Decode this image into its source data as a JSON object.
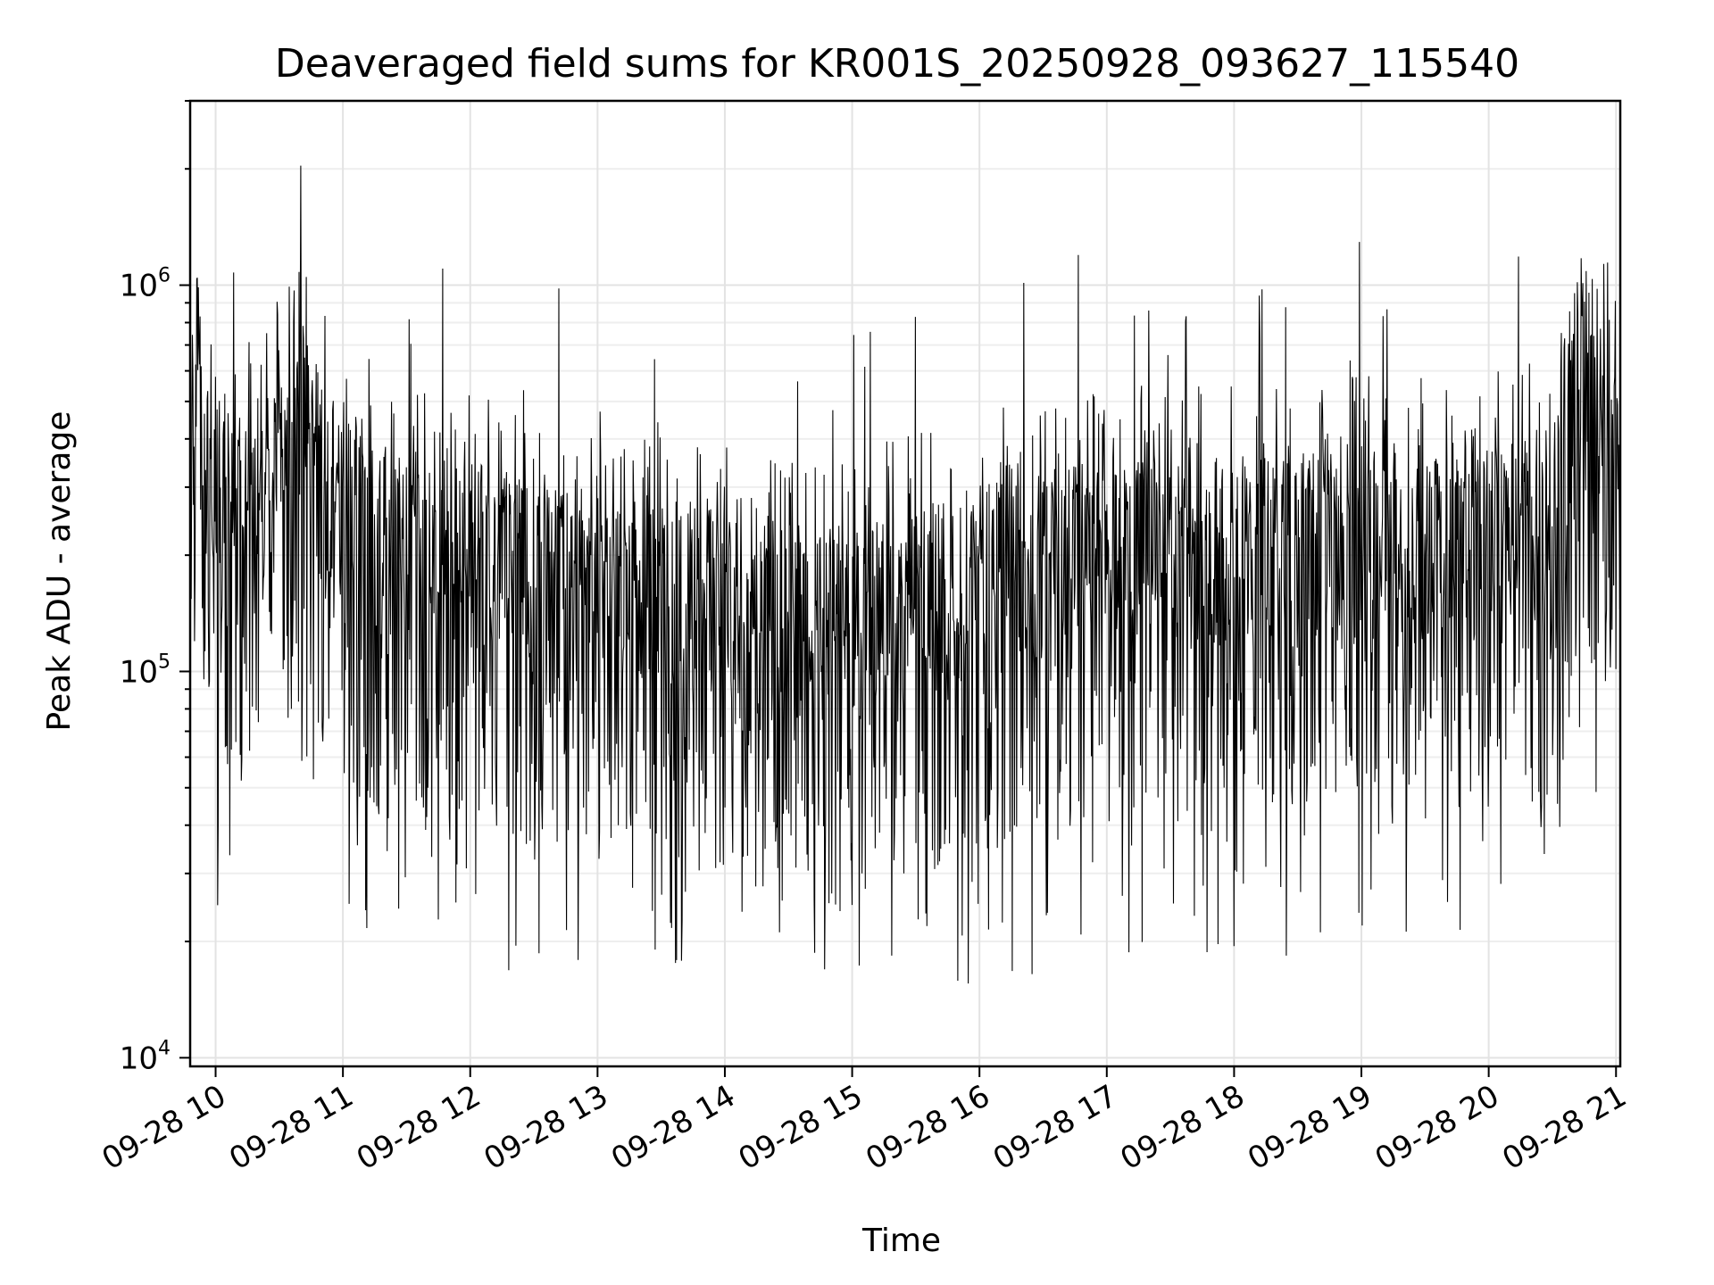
{
  "chart_data": {
    "type": "line",
    "title": "Deaveraged field sums for KR001S_20250928_093627_115540",
    "xlabel": "Time",
    "ylabel": "Peak ADU - average",
    "yscale": "log",
    "ylim": [
      9500,
      3000000
    ],
    "xlim": [
      "2025-09-28 09:48",
      "2025-09-28 21:02"
    ],
    "grid": true,
    "line_color": "#000000",
    "x_tick_labels": [
      "09-28 10",
      "09-28 11",
      "09-28 12",
      "09-28 13",
      "09-28 14",
      "09-28 15",
      "09-28 16",
      "09-28 17",
      "09-28 18",
      "09-28 19",
      "09-28 20",
      "09-28 21"
    ],
    "x_ticks_hours": [
      10,
      11,
      12,
      13,
      14,
      15,
      16,
      17,
      18,
      19,
      20,
      21
    ],
    "y_ticks": [
      {
        "base": "10",
        "exp": "4",
        "value": 10000
      },
      {
        "base": "10",
        "exp": "5",
        "value": 100000
      },
      {
        "base": "10",
        "exp": "6",
        "value": 1000000
      }
    ],
    "series": [
      {
        "x": [
          "09:48",
          "10:00",
          "10:15",
          "10:20",
          "10:28",
          "10:35",
          "10:40",
          "10:50",
          "11:00",
          "11:30",
          "12:00",
          "12:30",
          "13:00",
          "13:30",
          "14:00",
          "14:30",
          "15:00",
          "15:30",
          "16:00",
          "16:30",
          "17:00",
          "17:30",
          "18:00",
          "18:30",
          "19:00",
          "19:30",
          "20:00",
          "20:30",
          "20:35",
          "20:45",
          "21:00",
          "21:02"
        ],
        "y": [
          500000,
          280000,
          250000,
          270000,
          350000,
          300000,
          450000,
          320000,
          260000,
          190000,
          200000,
          170000,
          160000,
          165000,
          145000,
          125000,
          130000,
          150000,
          170000,
          185000,
          200000,
          195000,
          205000,
          200000,
          210000,
          205000,
          215000,
          230000,
          480000,
          520000,
          450000,
          400000
        ]
      }
    ]
  }
}
